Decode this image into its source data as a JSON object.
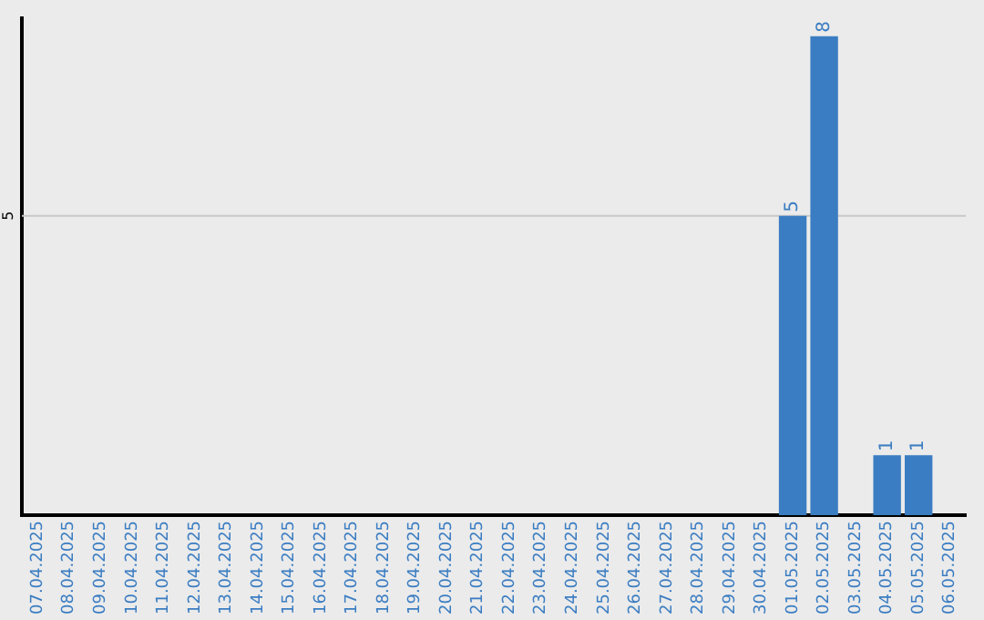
{
  "chart_data": {
    "type": "bar",
    "categories": [
      "07.04.2025",
      "08.04.2025",
      "09.04.2025",
      "10.04.2025",
      "11.04.2025",
      "12.04.2025",
      "13.04.2025",
      "14.04.2025",
      "15.04.2025",
      "16.04.2025",
      "17.04.2025",
      "18.04.2025",
      "19.04.2025",
      "20.04.2025",
      "21.04.2025",
      "22.04.2025",
      "23.04.2025",
      "24.04.2025",
      "25.04.2025",
      "26.04.2025",
      "27.04.2025",
      "28.04.2025",
      "29.04.2025",
      "30.04.2025",
      "01.05.2025",
      "02.05.2025",
      "03.05.2025",
      "04.05.2025",
      "05.05.2025",
      "06.05.2025"
    ],
    "values": [
      null,
      null,
      null,
      null,
      null,
      null,
      null,
      null,
      null,
      null,
      null,
      null,
      null,
      null,
      null,
      null,
      null,
      null,
      null,
      null,
      null,
      null,
      null,
      null,
      5,
      8,
      null,
      1,
      1,
      null
    ],
    "data_labels": true,
    "ref_lines": [
      {
        "axis": "y",
        "value": 5,
        "label": "5",
        "color": "#c8c8c8"
      }
    ],
    "ylim": [
      0,
      8.3
    ],
    "color": "#3b7dc2",
    "legend": false
  }
}
